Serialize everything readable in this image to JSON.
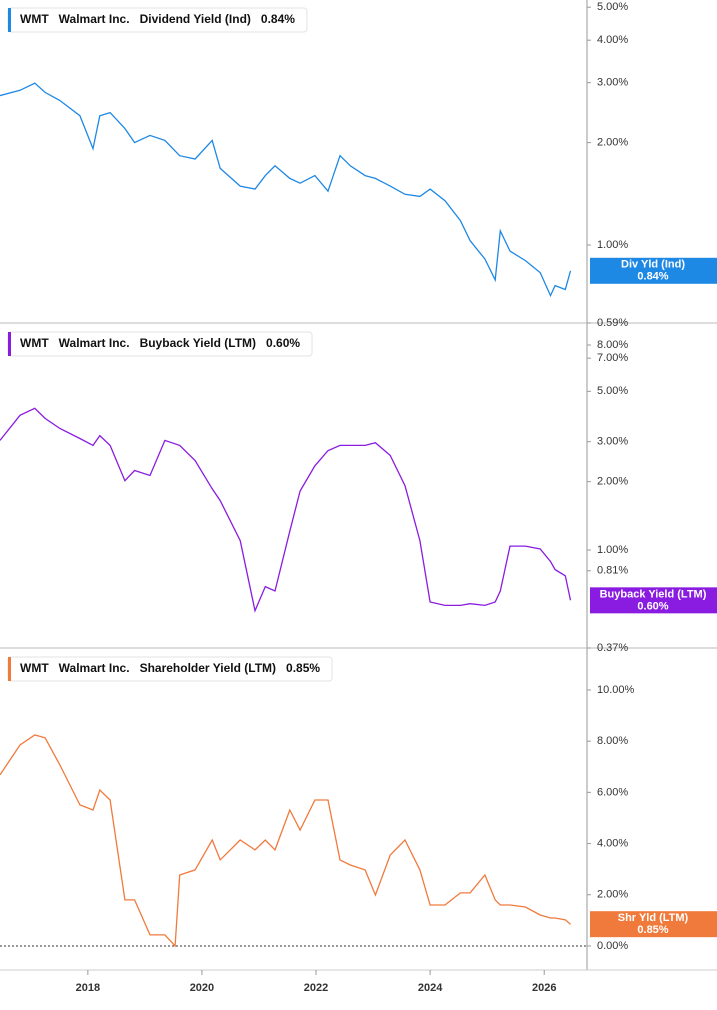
{
  "chart_data": [
    {
      "type": "line",
      "log_y": true,
      "header": {
        "ticker": "WMT",
        "company": "Walmart Inc.",
        "metric": "Dividend Yield (Ind)",
        "value": "0.84%"
      },
      "tag": {
        "name": "Div Yld (Ind)",
        "value": "0.84%"
      },
      "xlim": [
        2016.46,
        2026.75
      ],
      "ylim": [
        0.59,
        5.25
      ],
      "yticks": [
        {
          "value": 5,
          "label": "5.00%"
        },
        {
          "value": 4,
          "label": "4.00%"
        },
        {
          "value": 3,
          "label": "3.00%"
        },
        {
          "value": 2,
          "label": "2.00%"
        },
        {
          "value": 1,
          "label": "1.00%"
        },
        {
          "value": 0.59,
          "label": "0.59%"
        }
      ],
      "x": [
        2016.46,
        2016.81,
        2017.07,
        2017.25,
        2017.51,
        2017.86,
        2018.09,
        2018.21,
        2018.39,
        2018.65,
        2018.82,
        2019.09,
        2019.35,
        2019.61,
        2019.88,
        2020.18,
        2020.32,
        2020.67,
        2020.93,
        2021.11,
        2021.28,
        2021.54,
        2021.72,
        2021.98,
        2022.21,
        2022.42,
        2022.6,
        2022.86,
        2023.04,
        2023.3,
        2023.56,
        2023.82,
        2024.0,
        2024.26,
        2024.53,
        2024.7,
        2024.96,
        2025.14,
        2025.23,
        2025.4,
        2025.67,
        2025.93,
        2026.11,
        2026.19,
        2026.37,
        2026.46
      ],
      "series": [
        {
          "name": "Dividend Yield (Ind)",
          "color": "#1e88e5",
          "values": [
            2.75,
            2.85,
            2.99,
            2.81,
            2.66,
            2.4,
            1.92,
            2.4,
            2.45,
            2.2,
            2.0,
            2.1,
            2.03,
            1.83,
            1.79,
            2.03,
            1.68,
            1.49,
            1.46,
            1.6,
            1.71,
            1.57,
            1.52,
            1.6,
            1.44,
            1.83,
            1.71,
            1.6,
            1.57,
            1.49,
            1.41,
            1.39,
            1.46,
            1.35,
            1.18,
            1.03,
            0.91,
            0.79,
            1.1,
            0.96,
            0.9,
            0.83,
            0.71,
            0.76,
            0.74,
            0.84
          ]
        }
      ]
    },
    {
      "type": "line",
      "log_y": true,
      "header": {
        "ticker": "WMT",
        "company": "Walmart Inc.",
        "metric": "Buyback Yield (LTM)",
        "value": "0.60%"
      },
      "tag": {
        "name": "Buyback Yield (LTM)",
        "value": "0.60%"
      },
      "xlim": [
        2016.46,
        2026.75
      ],
      "ylim": [
        0.37,
        9.9
      ],
      "yticks": [
        {
          "value": 8,
          "label": "8.00%"
        },
        {
          "value": 7,
          "label": "7.00%"
        },
        {
          "value": 5,
          "label": "5.00%"
        },
        {
          "value": 3,
          "label": "3.00%"
        },
        {
          "value": 2,
          "label": "2.00%"
        },
        {
          "value": 1,
          "label": "1.00%"
        },
        {
          "value": 0.81,
          "label": "0.81%"
        },
        {
          "value": 0.37,
          "label": "0.37%"
        }
      ],
      "x": [
        2016.46,
        2016.81,
        2017.07,
        2017.25,
        2017.51,
        2017.86,
        2018.09,
        2018.21,
        2018.39,
        2018.65,
        2018.82,
        2019.09,
        2019.35,
        2019.61,
        2019.88,
        2020.18,
        2020.32,
        2020.67,
        2020.93,
        2021.11,
        2021.28,
        2021.54,
        2021.72,
        2021.98,
        2022.21,
        2022.42,
        2022.6,
        2022.86,
        2023.04,
        2023.3,
        2023.56,
        2023.82,
        2024.0,
        2024.26,
        2024.53,
        2024.7,
        2024.96,
        2025.14,
        2025.23,
        2025.4,
        2025.67,
        2025.93,
        2026.11,
        2026.19,
        2026.37,
        2026.46
      ],
      "series": [
        {
          "name": "Buyback Yield (LTM)",
          "color": "#8a1be0",
          "values": [
            3.04,
            3.92,
            4.21,
            3.8,
            3.43,
            3.1,
            2.89,
            3.19,
            2.89,
            2.02,
            2.24,
            2.13,
            3.04,
            2.89,
            2.48,
            1.86,
            1.65,
            1.1,
            0.54,
            0.69,
            0.66,
            1.21,
            1.82,
            2.35,
            2.74,
            2.89,
            2.89,
            2.89,
            2.97,
            2.61,
            1.92,
            1.1,
            0.59,
            0.57,
            0.57,
            0.58,
            0.57,
            0.59,
            0.66,
            1.04,
            1.04,
            1.01,
            0.89,
            0.82,
            0.77,
            0.6
          ]
        }
      ]
    },
    {
      "type": "line",
      "log_y": false,
      "zero_line": true,
      "header": {
        "ticker": "WMT",
        "company": "Walmart Inc.",
        "metric": "Shareholder Yield (LTM)",
        "value": "0.85%"
      },
      "tag": {
        "name": "Shr Yld (LTM)",
        "value": "0.85%"
      },
      "xlim": [
        2016.46,
        2026.75
      ],
      "ylim": [
        -0.94,
        11.6
      ],
      "xticks": [
        2018,
        2020,
        2022,
        2024,
        2026
      ],
      "yticks": [
        {
          "value": 10,
          "label": "10.00%"
        },
        {
          "value": 8,
          "label": "8.00%"
        },
        {
          "value": 6,
          "label": "6.00%"
        },
        {
          "value": 4,
          "label": "4.00%"
        },
        {
          "value": 2,
          "label": "2.00%"
        },
        {
          "value": 0,
          "label": "0.00%"
        }
      ],
      "x": [
        2016.46,
        2016.81,
        2017.07,
        2017.25,
        2017.51,
        2017.86,
        2018.09,
        2018.21,
        2018.39,
        2018.65,
        2018.82,
        2019.09,
        2019.35,
        2019.53,
        2019.61,
        2019.88,
        2020.18,
        2020.32,
        2020.67,
        2020.93,
        2021.11,
        2021.28,
        2021.54,
        2021.72,
        2021.98,
        2022.21,
        2022.42,
        2022.6,
        2022.86,
        2023.04,
        2023.3,
        2023.56,
        2023.82,
        2024.0,
        2024.26,
        2024.53,
        2024.7,
        2024.96,
        2025.14,
        2025.23,
        2025.4,
        2025.67,
        2025.93,
        2026.11,
        2026.19,
        2026.37,
        2026.46
      ],
      "series": [
        {
          "name": "Shareholder Yield (LTM)",
          "color": "#f07a3c",
          "values": [
            6.68,
            7.85,
            8.24,
            8.13,
            7.07,
            5.51,
            5.31,
            6.09,
            5.7,
            1.8,
            1.8,
            0.43,
            0.43,
            0,
            2.77,
            2.97,
            4.14,
            3.36,
            4.14,
            3.75,
            4.14,
            3.75,
            5.31,
            4.53,
            5.7,
            5.7,
            3.36,
            3.16,
            2.97,
            1.99,
            3.55,
            4.14,
            2.97,
            1.6,
            1.6,
            2.07,
            2.07,
            2.77,
            1.8,
            1.6,
            1.6,
            1.52,
            1.21,
            1.09,
            1.09,
            1.02,
            0.85
          ]
        }
      ]
    }
  ]
}
